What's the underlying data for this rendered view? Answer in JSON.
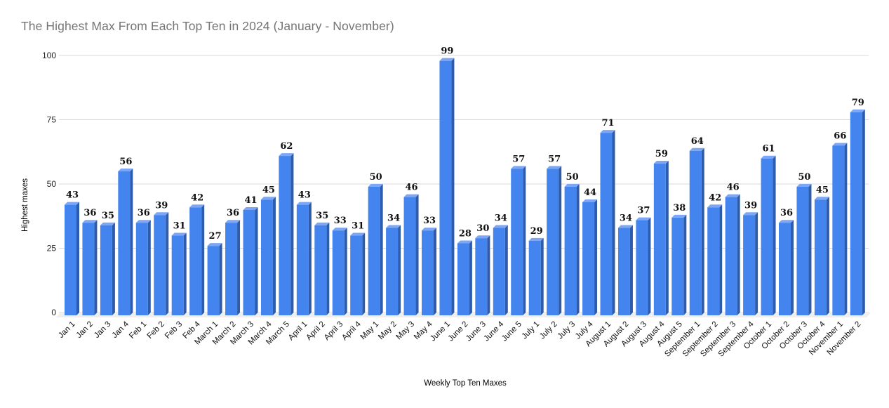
{
  "chart_data": {
    "type": "bar",
    "style": "3d-column",
    "title": "The Highest Max From Each Top Ten in 2024 (January - November)",
    "xlabel": "Weekly Top Ten Maxes",
    "ylabel": "Highest maxes",
    "categories": [
      "Jan 1",
      "Jan 2",
      "Jan 3",
      "Jan 4",
      "Feb 1",
      "Feb 2",
      "Feb 3",
      "Feb 4",
      "March 1",
      "March 2",
      "March 3",
      "March 4",
      "March 5",
      "April 1",
      "April 2",
      "April 3",
      "April 4",
      "May 1",
      "May 2",
      "May 3",
      "May 4",
      "June 1",
      "June 2",
      "June 3",
      "June 4",
      "June 5",
      "July 1",
      "July 2",
      "July 3",
      "July 4",
      "August 1",
      "August 2",
      "August 3",
      "August 4",
      "August 5",
      "September 1",
      "September 2",
      "September 3",
      "September 4",
      "October 1",
      "October 2",
      "October 3",
      "October 4",
      "November 1",
      "November 2"
    ],
    "values": [
      43,
      36,
      35,
      56,
      36,
      39,
      31,
      42,
      27,
      36,
      41,
      45,
      62,
      43,
      35,
      33,
      31,
      50,
      34,
      46,
      33,
      99,
      28,
      30,
      34,
      57,
      29,
      57,
      50,
      44,
      71,
      34,
      37,
      59,
      38,
      64,
      42,
      46,
      39,
      61,
      36,
      50,
      45,
      66,
      79
    ],
    "y_ticks": [
      0,
      25,
      50,
      75,
      100
    ],
    "ylim": [
      0,
      100
    ],
    "grid": true,
    "legend": "none",
    "colors": {
      "bar_front": "#4484ee",
      "bar_top": "#7da7f4",
      "bar_side": "#2e5cab",
      "gridline": "#d9d9d9",
      "floor": "#efefef",
      "title_text": "#757575",
      "background": "#ffffff"
    }
  }
}
